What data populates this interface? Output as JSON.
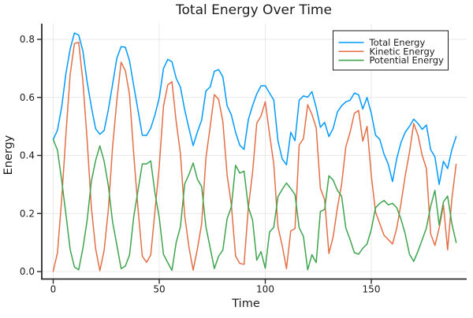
{
  "title": "Total Energy Over Time",
  "colors": {
    "total": "#009AFA",
    "kinetic": "#E36F47",
    "potential": "#3EA44E",
    "grid": "#E8E8E8",
    "axis": "#2B2B2B",
    "legend_border": "#1A1A1A",
    "background": "#FFFFFF"
  },
  "legend": {
    "position": "top-right",
    "entries": [
      "Total Energy",
      "Kinetic Energy",
      "Potential Energy"
    ]
  },
  "chart_data": {
    "type": "line",
    "title": "Total Energy Over Time",
    "xlabel": "Time",
    "ylabel": "Energy",
    "xlim": [
      -5.4,
      194.2
    ],
    "ylim": [
      -0.025,
      0.855
    ],
    "grid": true,
    "legend_position": "top-right",
    "xticks": [
      0,
      50,
      100,
      150
    ],
    "xtick_labels": [
      "0",
      "50",
      "100",
      "150"
    ],
    "yticks": [
      0.0,
      0.2,
      0.4,
      0.6,
      0.8
    ],
    "ytick_labels": [
      "0.0",
      "0.2",
      "0.4",
      "0.6",
      "0.8"
    ],
    "x": [
      0,
      2,
      4,
      6,
      8,
      10,
      12,
      14,
      16,
      18,
      20,
      22,
      24,
      26,
      28,
      30,
      32,
      34,
      36,
      38,
      40,
      42,
      44,
      46,
      48,
      50,
      52,
      54,
      56,
      58,
      60,
      62,
      64,
      66,
      68,
      70,
      72,
      74,
      76,
      78,
      80,
      82,
      84,
      86,
      88,
      90,
      92,
      94,
      96,
      98,
      100,
      102,
      104,
      106,
      108,
      110,
      112,
      114,
      116,
      118,
      120,
      122,
      124,
      126,
      128,
      130,
      132,
      134,
      136,
      138,
      140,
      142,
      144,
      146,
      148,
      150,
      152,
      154,
      156,
      158,
      160,
      162,
      164,
      166,
      168,
      170,
      172,
      174,
      176,
      178,
      180,
      182,
      184,
      186,
      188,
      190
    ],
    "series": [
      {
        "name": "Total Energy",
        "color": "#009AFA",
        "values": [
          0.455,
          0.487,
          0.568,
          0.682,
          0.767,
          0.822,
          0.815,
          0.759,
          0.654,
          0.567,
          0.492,
          0.473,
          0.486,
          0.557,
          0.645,
          0.735,
          0.775,
          0.773,
          0.726,
          0.639,
          0.555,
          0.47,
          0.469,
          0.494,
          0.54,
          0.599,
          0.7,
          0.731,
          0.723,
          0.666,
          0.635,
          0.557,
          0.493,
          0.434,
          0.481,
          0.522,
          0.622,
          0.636,
          0.69,
          0.696,
          0.671,
          0.571,
          0.539,
          0.48,
          0.435,
          0.421,
          0.523,
          0.572,
          0.612,
          0.64,
          0.64,
          0.615,
          0.591,
          0.45,
          0.388,
          0.368,
          0.48,
          0.451,
          0.59,
          0.605,
          0.601,
          0.62,
          0.565,
          0.497,
          0.514,
          0.465,
          0.493,
          0.55,
          0.571,
          0.585,
          0.59,
          0.615,
          0.609,
          0.56,
          0.6,
          0.545,
          0.47,
          0.455,
          0.405,
          0.37,
          0.31,
          0.39,
          0.445,
          0.48,
          0.5,
          0.525,
          0.51,
          0.49,
          0.505,
          0.42,
          0.395,
          0.3,
          0.38,
          0.355,
          0.42,
          0.465
        ]
      },
      {
        "name": "Kinetic Energy",
        "color": "#E36F47",
        "values": [
          0.001,
          0.065,
          0.251,
          0.472,
          0.679,
          0.785,
          0.79,
          0.654,
          0.454,
          0.221,
          0.078,
          0.003,
          0.073,
          0.212,
          0.429,
          0.589,
          0.721,
          0.692,
          0.61,
          0.402,
          0.216,
          0.053,
          0.032,
          0.057,
          0.209,
          0.362,
          0.57,
          0.643,
          0.654,
          0.517,
          0.406,
          0.192,
          0.084,
          0.005,
          0.078,
          0.165,
          0.391,
          0.499,
          0.61,
          0.593,
          0.516,
          0.333,
          0.229,
          0.054,
          0.028,
          0.025,
          0.22,
          0.342,
          0.511,
          0.536,
          0.585,
          0.474,
          0.37,
          0.154,
          0.089,
          0.01,
          0.14,
          0.148,
          0.436,
          0.458,
          0.575,
          0.541,
          0.496,
          0.287,
          0.248,
          0.062,
          0.12,
          0.22,
          0.3,
          0.43,
          0.48,
          0.545,
          0.555,
          0.449,
          0.5,
          0.33,
          0.205,
          0.165,
          0.125,
          0.11,
          0.095,
          0.15,
          0.235,
          0.33,
          0.41,
          0.51,
          0.47,
          0.4,
          0.355,
          0.13,
          0.09,
          0.15,
          0.23,
          0.075,
          0.25,
          0.37
        ]
      },
      {
        "name": "Potential Energy",
        "color": "#3EA44E",
        "values": [
          0.455,
          0.418,
          0.313,
          0.198,
          0.076,
          0.016,
          0.006,
          0.081,
          0.176,
          0.311,
          0.383,
          0.433,
          0.38,
          0.297,
          0.171,
          0.092,
          0.01,
          0.019,
          0.057,
          0.19,
          0.28,
          0.371,
          0.371,
          0.381,
          0.27,
          0.186,
          0.059,
          0.031,
          0.004,
          0.1,
          0.155,
          0.302,
          0.335,
          0.374,
          0.318,
          0.293,
          0.154,
          0.082,
          0.01,
          0.053,
          0.074,
          0.182,
          0.223,
          0.366,
          0.339,
          0.346,
          0.222,
          0.177,
          0.039,
          0.069,
          0.011,
          0.136,
          0.153,
          0.258,
          0.283,
          0.305,
          0.286,
          0.265,
          0.151,
          0.121,
          0.006,
          0.058,
          0.031,
          0.207,
          0.214,
          0.33,
          0.315,
          0.28,
          0.26,
          0.15,
          0.11,
          0.065,
          0.06,
          0.08,
          0.095,
          0.145,
          0.22,
          0.235,
          0.245,
          0.23,
          0.235,
          0.22,
          0.18,
          0.13,
          0.06,
          0.035,
          0.07,
          0.11,
          0.15,
          0.225,
          0.28,
          0.16,
          0.24,
          0.26,
          0.165,
          0.1
        ]
      }
    ]
  }
}
